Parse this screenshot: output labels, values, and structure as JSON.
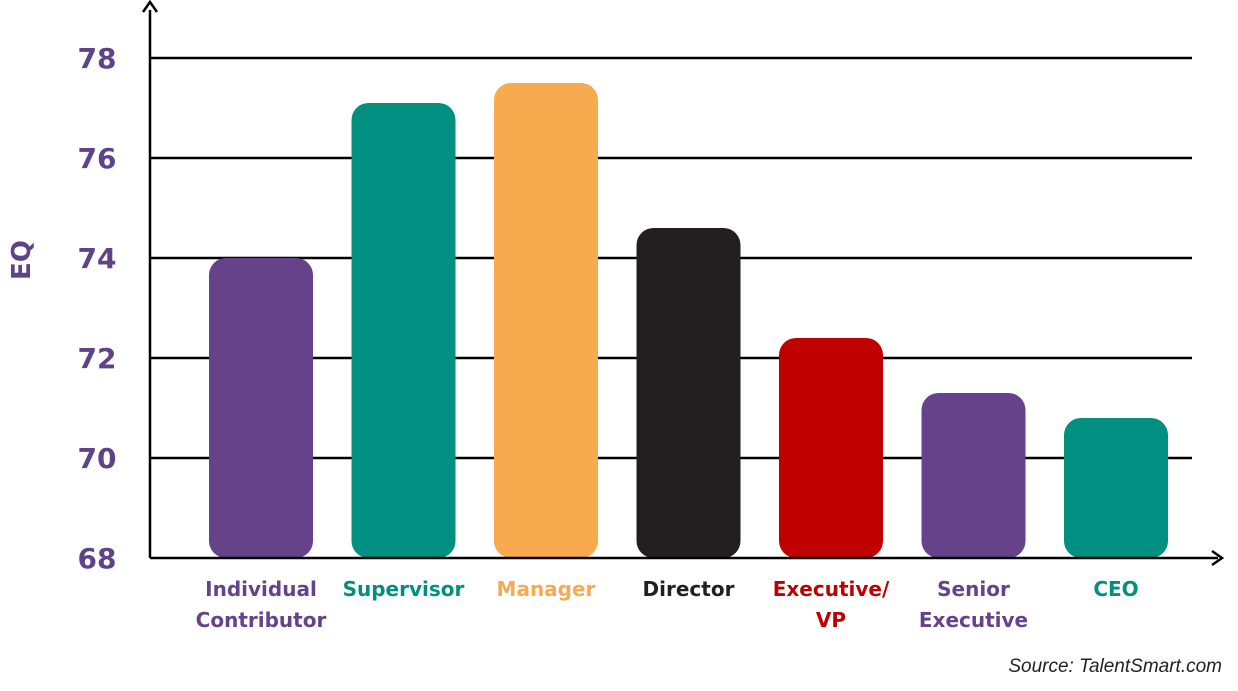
{
  "chart_data": {
    "type": "bar",
    "title": "",
    "xlabel": "",
    "ylabel": "EQ",
    "ylim": [
      68,
      79
    ],
    "yticks": [
      68,
      70,
      72,
      74,
      76,
      78
    ],
    "grid": true,
    "categories": [
      {
        "lines": [
          "Individual",
          "Contributor"
        ],
        "color": "#65428a"
      },
      {
        "lines": [
          "Supervisor"
        ],
        "color": "#008f80"
      },
      {
        "lines": [
          "Manager"
        ],
        "color": "#f8ab4e"
      },
      {
        "lines": [
          "Director"
        ],
        "color": "#231f20"
      },
      {
        "lines": [
          "Executive/",
          "VP"
        ],
        "color": "#c00000"
      },
      {
        "lines": [
          "Senior",
          "Executive"
        ],
        "color": "#65428a"
      },
      {
        "lines": [
          "CEO"
        ],
        "color": "#008f80"
      }
    ],
    "values": [
      74.0,
      77.1,
      77.5,
      74.6,
      72.4,
      71.3,
      70.8
    ]
  },
  "source": "Source: TalentSmart.com",
  "colors": {
    "axis": "#000000",
    "tick_text": "#5f4389"
  }
}
